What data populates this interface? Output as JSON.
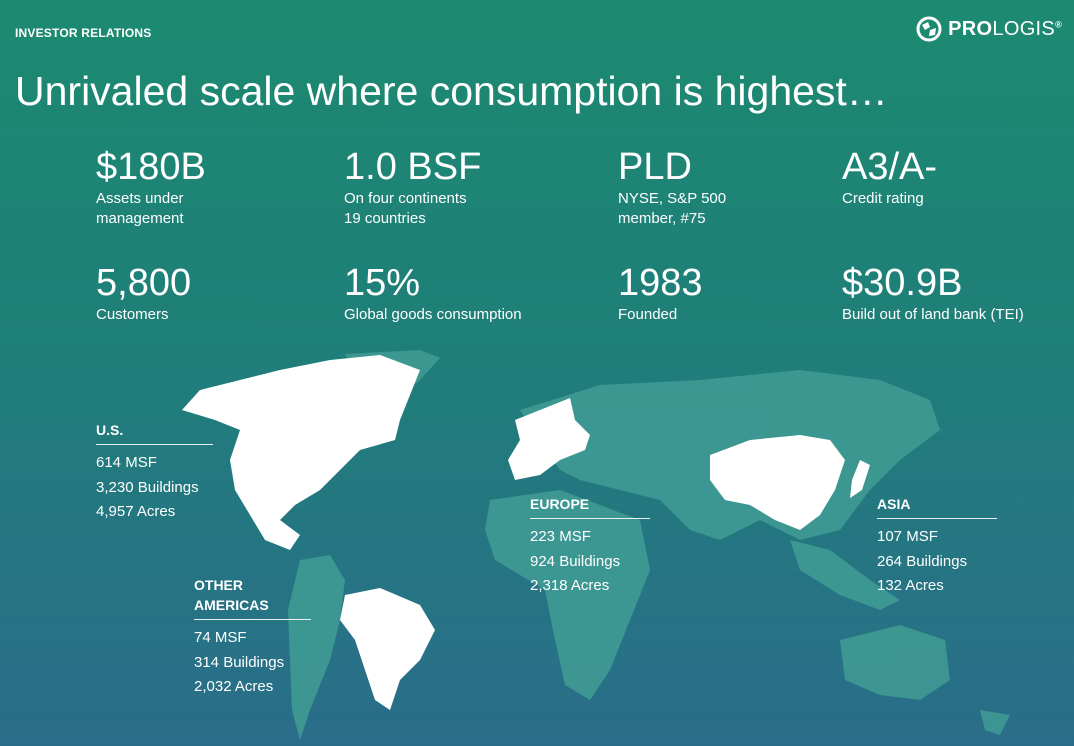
{
  "header": {
    "section_label": "INVESTOR RELATIONS",
    "logo_bold": "PRO",
    "logo_light": "LOGIS",
    "logo_mark": "®"
  },
  "title": "Unrivaled scale where consumption is highest…",
  "stats": [
    {
      "value": "$180B",
      "desc": "Assets under\nmanagement"
    },
    {
      "value": "1.0 BSF",
      "desc": "On four continents\n19 countries"
    },
    {
      "value": "PLD",
      "desc": "NYSE, S&P 500\nmember, #75"
    },
    {
      "value": "A3/A-",
      "desc": "Credit rating"
    },
    {
      "value": "5,800",
      "desc": "Customers"
    },
    {
      "value": "15%",
      "desc": "Global goods consumption"
    },
    {
      "value": "1983",
      "desc": "Founded"
    },
    {
      "value": "$30.9B",
      "desc": "Build out of land bank (TEI)"
    }
  ],
  "regions": {
    "us": {
      "name": "U.S.",
      "msf": "614 MSF",
      "buildings": "3,230 Buildings",
      "acres": "4,957 Acres"
    },
    "other_americas": {
      "name": "OTHER\nAMERICAS",
      "msf": "74 MSF",
      "buildings": "314 Buildings",
      "acres": "2,032 Acres"
    },
    "europe": {
      "name": "EUROPE",
      "msf": "223 MSF",
      "buildings": "924 Buildings",
      "acres": "2,318 Acres"
    },
    "asia": {
      "name": "ASIA",
      "msf": "107 MSF",
      "buildings": "264 Buildings",
      "acres": "132 Acres"
    }
  },
  "colors": {
    "highlight": "#ffffff",
    "land": "#3f9a94",
    "accent": "#1c8a70"
  }
}
